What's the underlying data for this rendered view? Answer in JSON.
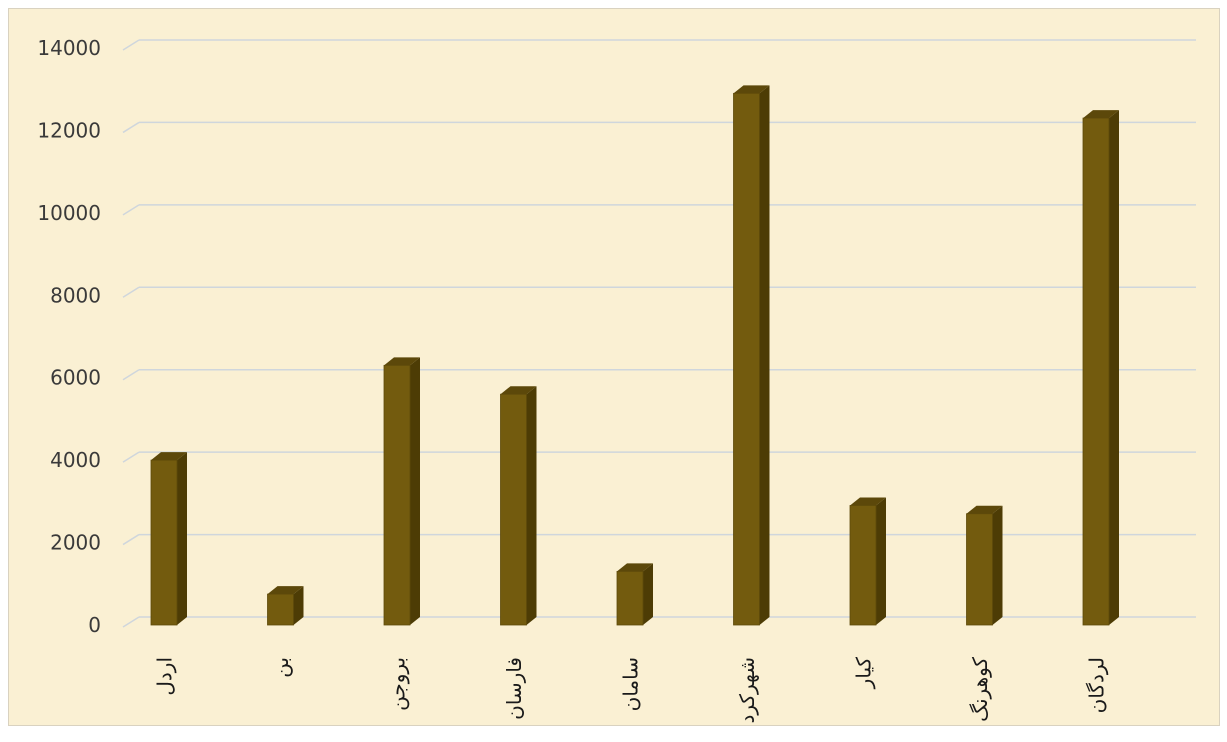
{
  "colors": {
    "background": "#faf0d3",
    "gridline": "#cfd6dc",
    "bar_front": "#735b0e",
    "bar_side": "#4d3c05",
    "bar_top": "#5c480a",
    "text": "#3a3a3a"
  },
  "chart_data": {
    "type": "bar",
    "style": "3d-column",
    "title": "",
    "xlabel": "",
    "ylabel": "",
    "ylim": [
      0,
      14000
    ],
    "yticks": [
      0,
      2000,
      4000,
      6000,
      8000,
      10000,
      12000,
      14000
    ],
    "grid": true,
    "categories": [
      "اردل",
      "بن",
      "بروجن",
      "فارسان",
      "سامان",
      "شهرکرد",
      "کیار",
      "کوهرنگ",
      "لردگان"
    ],
    "series": [
      {
        "values": [
          4000,
          750,
          6300,
          5600,
          1300,
          12900,
          2900,
          2700,
          12300
        ]
      }
    ]
  }
}
